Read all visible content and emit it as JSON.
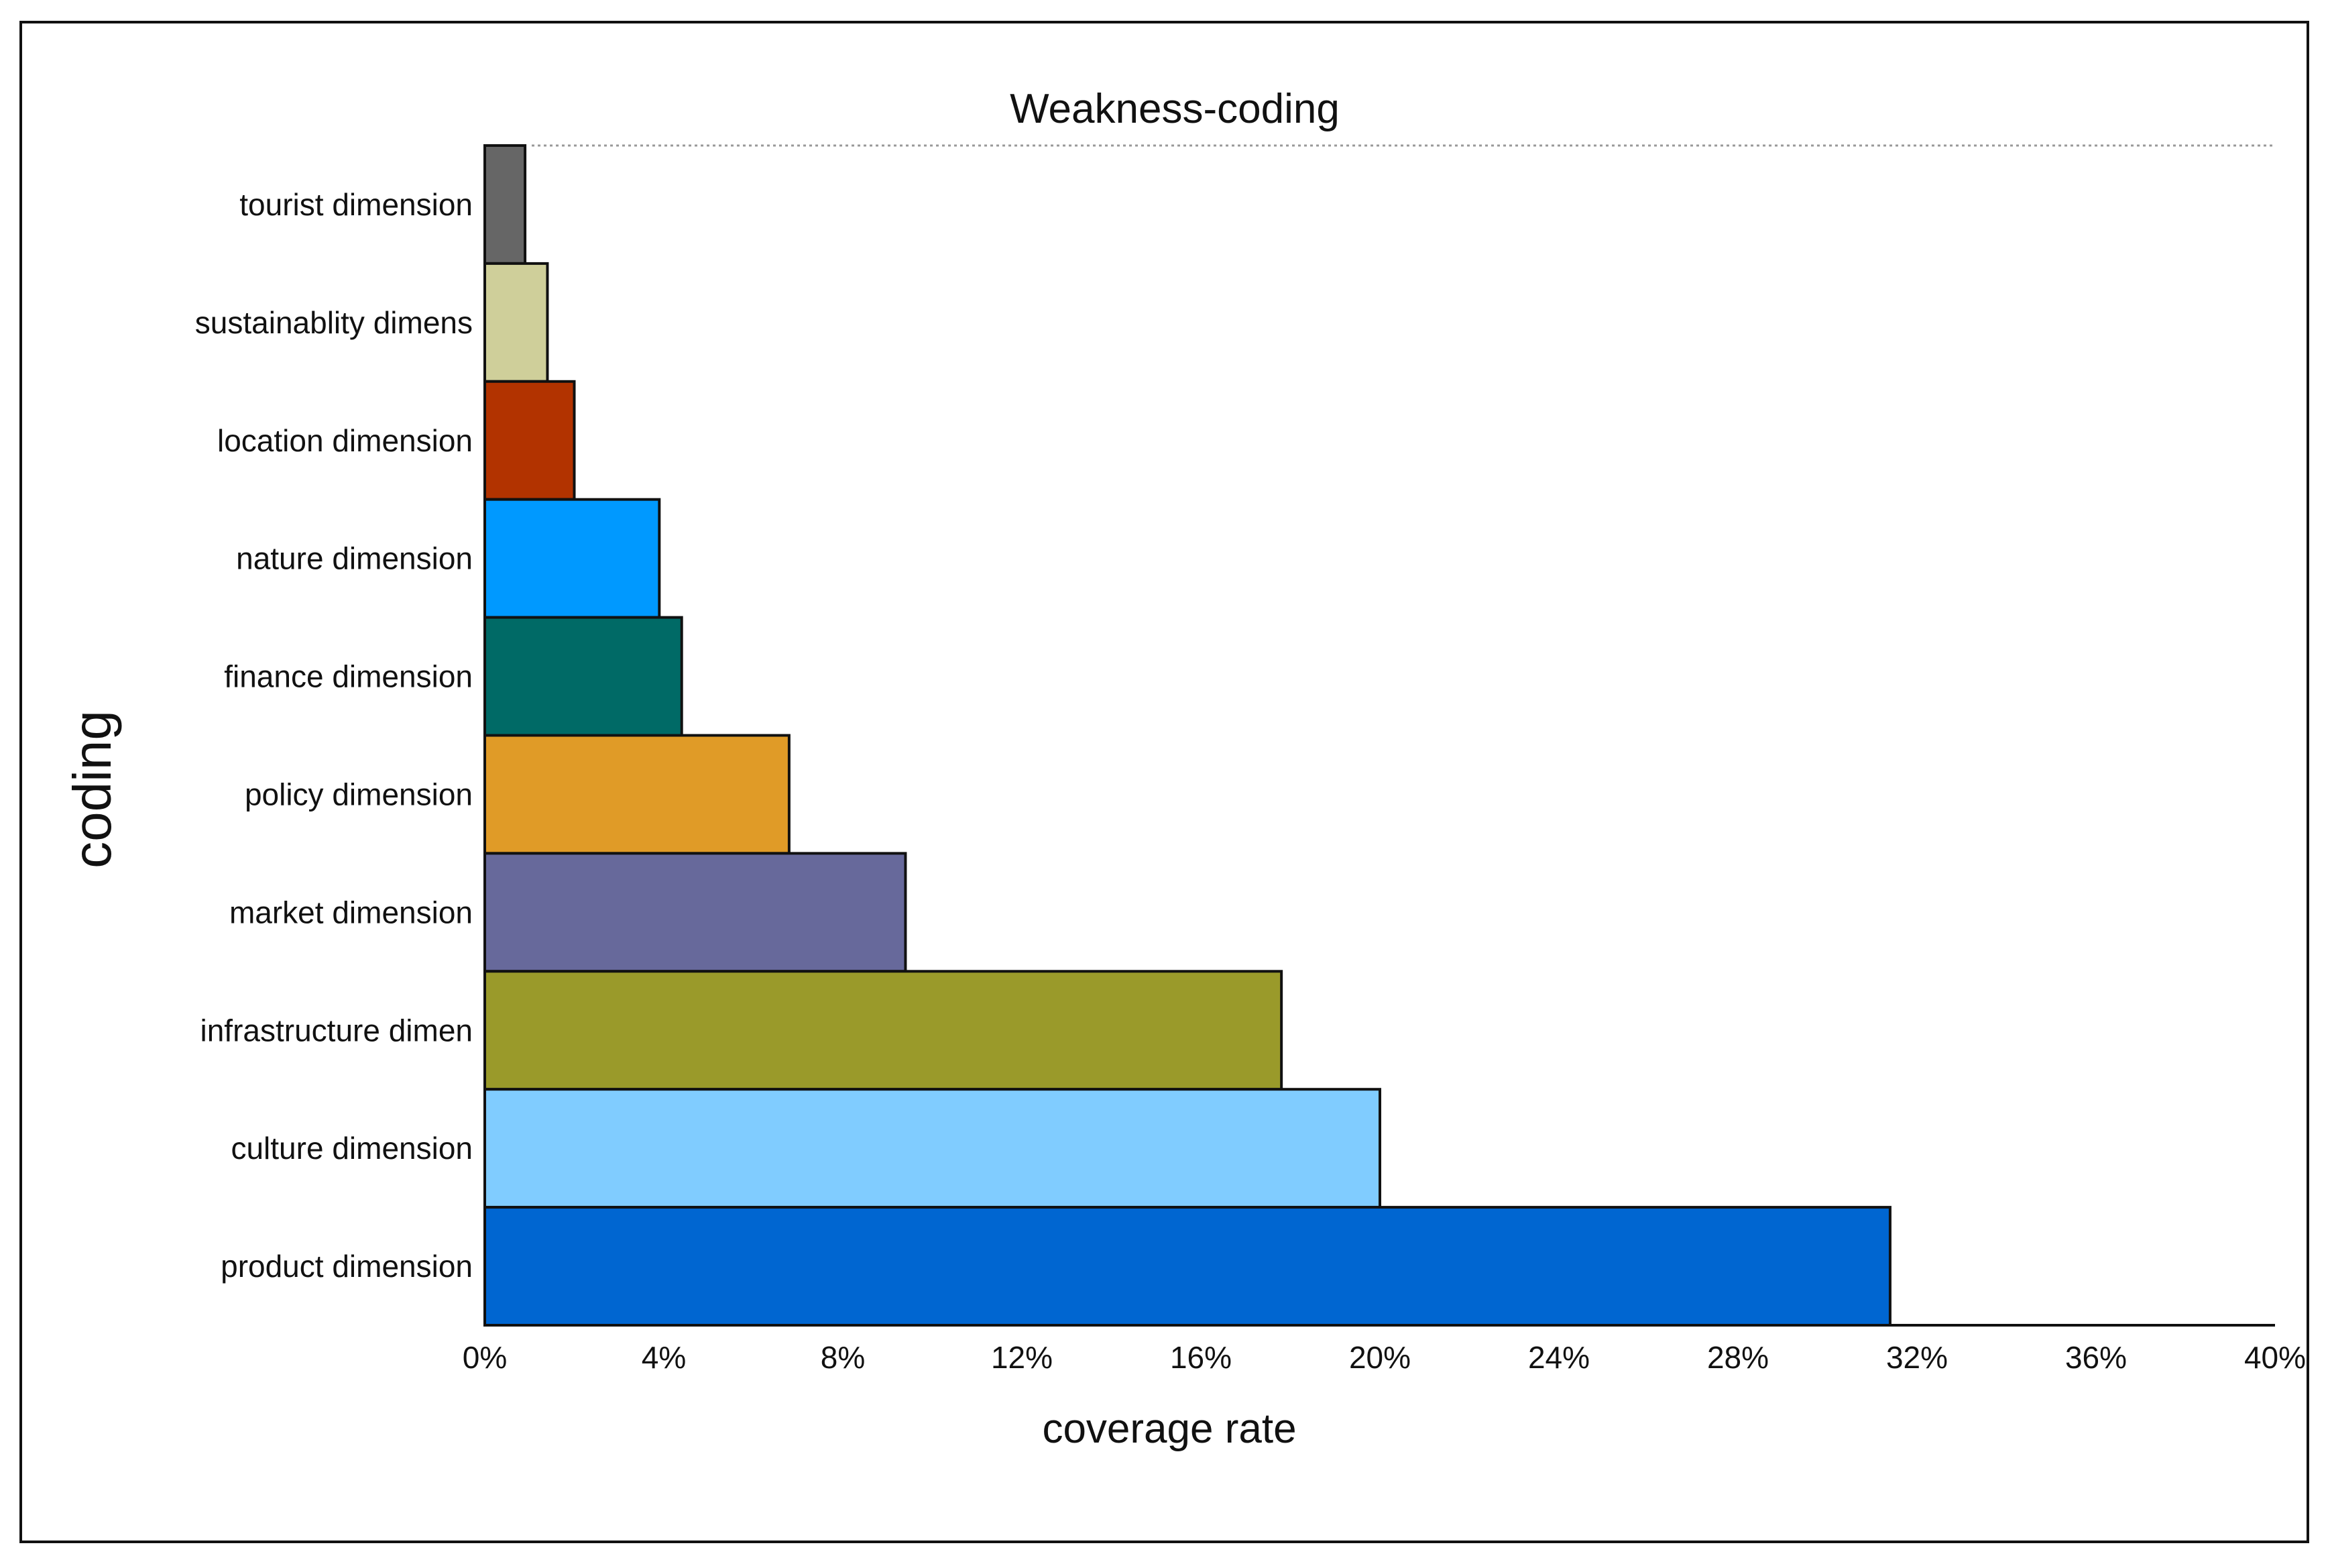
{
  "chart_data": {
    "type": "bar",
    "orientation": "horizontal",
    "title": "Weakness-coding",
    "xlabel": "coverage rate",
    "ylabel": "coding",
    "categories": [
      "tourist dimension",
      "sustainablity dimens",
      "location dimension",
      "nature dimension",
      "finance dimension",
      "policy dimension",
      "market dimension",
      "infrastructure dimen",
      "culture dimension",
      "product dimension"
    ],
    "values": [
      0.9,
      1.4,
      2.0,
      3.9,
      4.4,
      6.8,
      9.4,
      17.8,
      20.0,
      31.4
    ],
    "colors": [
      "#666666",
      "#cfcf9a",
      "#b23300",
      "#0099ff",
      "#006a66",
      "#e09b27",
      "#67699b",
      "#9a9a2a",
      "#80ccff",
      "#0066d1"
    ],
    "xlim": [
      0,
      40
    ],
    "xticks": [
      "0%",
      "4%",
      "8%",
      "12%",
      "16%",
      "20%",
      "24%",
      "28%",
      "32%",
      "36%",
      "40%"
    ],
    "grid": false
  }
}
